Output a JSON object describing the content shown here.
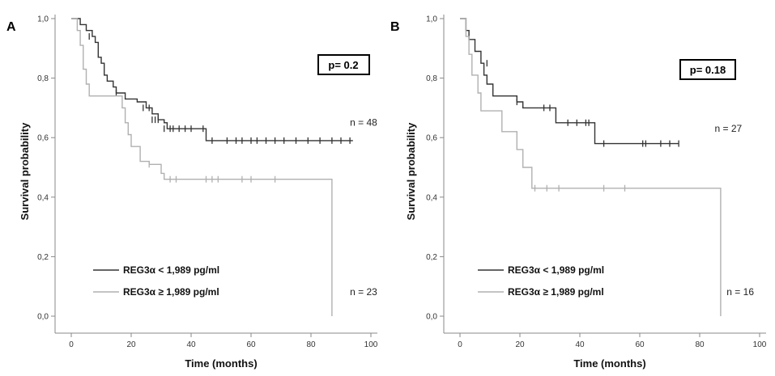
{
  "chart_data": [
    {
      "type": "line",
      "panel": "A",
      "pvalue": "p= 0.2",
      "xlabel": "Time (months)",
      "ylabel": "Survival probability",
      "xlim": [
        0,
        100
      ],
      "ylim": [
        0,
        1
      ],
      "xticks": [
        "0",
        "20",
        "40",
        "60",
        "80",
        "100"
      ],
      "yticks": [
        "0,0",
        "0,2",
        "0,4",
        "0,6",
        "0,8",
        "1,0"
      ],
      "legend_position": "bottom-left",
      "series": [
        {
          "name": "REG3α < 1,989 pg/ml",
          "color": "#333333",
          "n_label": "n = 48",
          "n_label_at": [
            93,
            0.64
          ],
          "steps": [
            [
              1,
              1.0
            ],
            [
              3,
              0.98
            ],
            [
              5,
              0.96
            ],
            [
              7,
              0.94
            ],
            [
              8,
              0.92
            ],
            [
              9,
              0.87
            ],
            [
              10,
              0.85
            ],
            [
              11,
              0.81
            ],
            [
              12,
              0.79
            ],
            [
              14,
              0.77
            ],
            [
              15,
              0.75
            ],
            [
              18,
              0.73
            ],
            [
              22,
              0.72
            ],
            [
              25,
              0.7
            ],
            [
              27,
              0.68
            ],
            [
              29,
              0.66
            ],
            [
              31,
              0.65
            ],
            [
              32,
              0.63
            ],
            [
              45,
              0.59
            ],
            [
              94,
              0.59
            ]
          ],
          "censored": [
            [
              6,
              0.94
            ],
            [
              15,
              0.75
            ],
            [
              24,
              0.7
            ],
            [
              26,
              0.7
            ],
            [
              27,
              0.66
            ],
            [
              28,
              0.66
            ],
            [
              29,
              0.66
            ],
            [
              31,
              0.63
            ],
            [
              33,
              0.63
            ],
            [
              34,
              0.63
            ],
            [
              36,
              0.63
            ],
            [
              38,
              0.63
            ],
            [
              40,
              0.63
            ],
            [
              44,
              0.63
            ],
            [
              47,
              0.59
            ],
            [
              52,
              0.59
            ],
            [
              55,
              0.59
            ],
            [
              57,
              0.59
            ],
            [
              60,
              0.59
            ],
            [
              62,
              0.59
            ],
            [
              65,
              0.59
            ],
            [
              68,
              0.59
            ],
            [
              71,
              0.59
            ],
            [
              75,
              0.59
            ],
            [
              79,
              0.59
            ],
            [
              83,
              0.59
            ],
            [
              87,
              0.59
            ],
            [
              90,
              0.59
            ],
            [
              93,
              0.59
            ]
          ]
        },
        {
          "name": "REG3α ≥ 1,989 pg/ml",
          "color": "#b0b0b0",
          "n_label": "n = 23",
          "n_label_at": [
            93,
            0.07
          ],
          "steps": [
            [
              1,
              1.0
            ],
            [
              2,
              0.96
            ],
            [
              3,
              0.91
            ],
            [
              4,
              0.83
            ],
            [
              5,
              0.78
            ],
            [
              6,
              0.74
            ],
            [
              17,
              0.7
            ],
            [
              18,
              0.65
            ],
            [
              19,
              0.61
            ],
            [
              20,
              0.57
            ],
            [
              23,
              0.52
            ],
            [
              26,
              0.51
            ],
            [
              30,
              0.48
            ],
            [
              31,
              0.46
            ],
            [
              87,
              0.0
            ]
          ],
          "censored": [
            [
              26,
              0.51
            ],
            [
              33,
              0.46
            ],
            [
              35,
              0.46
            ],
            [
              45,
              0.46
            ],
            [
              47,
              0.46
            ],
            [
              49,
              0.46
            ],
            [
              57,
              0.46
            ],
            [
              60,
              0.46
            ],
            [
              68,
              0.46
            ]
          ]
        }
      ]
    },
    {
      "type": "line",
      "panel": "B",
      "pvalue": "p= 0.18",
      "xlabel": "Time (months)",
      "ylabel": "Survival probability",
      "xlim": [
        0,
        100
      ],
      "ylim": [
        0,
        1
      ],
      "xticks": [
        "0",
        "20",
        "40",
        "60",
        "80",
        "100"
      ],
      "yticks": [
        "0,0",
        "0,2",
        "0,4",
        "0,6",
        "0,8",
        "1,0"
      ],
      "legend_position": "bottom-left",
      "series": [
        {
          "name": "REG3α < 1,989 pg/ml",
          "color": "#333333",
          "n_label": "n = 27",
          "n_label_at": [
            85,
            0.62
          ],
          "steps": [
            [
              1,
              1.0
            ],
            [
              2,
              0.96
            ],
            [
              3,
              0.93
            ],
            [
              5,
              0.89
            ],
            [
              7,
              0.85
            ],
            [
              8,
              0.81
            ],
            [
              9,
              0.78
            ],
            [
              11,
              0.74
            ],
            [
              19,
              0.72
            ],
            [
              21,
              0.7
            ],
            [
              32,
              0.65
            ],
            [
              45,
              0.58
            ],
            [
              73,
              0.58
            ]
          ],
          "censored": [
            [
              9,
              0.85
            ],
            [
              19,
              0.72
            ],
            [
              28,
              0.7
            ],
            [
              30,
              0.7
            ],
            [
              36,
              0.65
            ],
            [
              39,
              0.65
            ],
            [
              42,
              0.65
            ],
            [
              43,
              0.65
            ],
            [
              48,
              0.58
            ],
            [
              61,
              0.58
            ],
            [
              62,
              0.58
            ],
            [
              67,
              0.58
            ],
            [
              70,
              0.58
            ],
            [
              73,
              0.58
            ]
          ]
        },
        {
          "name": "REG3α ≥ 1,989 pg/ml",
          "color": "#b0b0b0",
          "n_label": "n = 16",
          "n_label_at": [
            89,
            0.07
          ],
          "steps": [
            [
              1,
              1.0
            ],
            [
              2,
              0.94
            ],
            [
              3,
              0.88
            ],
            [
              4,
              0.81
            ],
            [
              6,
              0.75
            ],
            [
              7,
              0.69
            ],
            [
              14,
              0.62
            ],
            [
              19,
              0.56
            ],
            [
              21,
              0.5
            ],
            [
              24,
              0.43
            ],
            [
              87,
              0.0
            ]
          ],
          "censored": [
            [
              25,
              0.43
            ],
            [
              29,
              0.43
            ],
            [
              33,
              0.43
            ],
            [
              48,
              0.43
            ],
            [
              55,
              0.43
            ]
          ]
        }
      ]
    }
  ]
}
